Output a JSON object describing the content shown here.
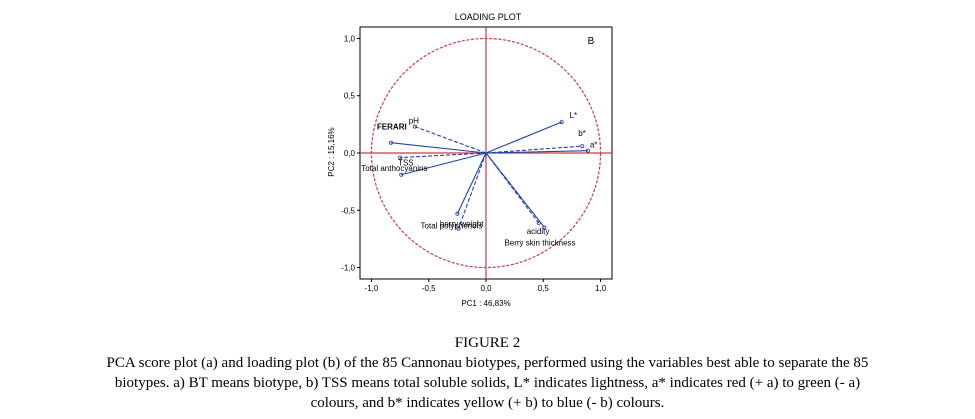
{
  "chart_data": {
    "type": "scatter",
    "title": "LOADING PLOT",
    "panel_label": "B",
    "xlabel": "PC1 : 46,83%",
    "ylabel": "PC2 : 15,16%",
    "xlim": [
      -1.1,
      1.1
    ],
    "ylim": [
      -1.1,
      1.1
    ],
    "xticks": [
      {
        "value": -1.0,
        "label": "-1,0"
      },
      {
        "value": -0.5,
        "label": "-0,5"
      },
      {
        "value": 0.0,
        "label": "0,0"
      },
      {
        "value": 0.5,
        "label": "0,5"
      },
      {
        "value": 1.0,
        "label": "1,0"
      }
    ],
    "yticks": [
      {
        "value": 1.0,
        "label": "1,0"
      },
      {
        "value": 0.5,
        "label": "0,5"
      },
      {
        "value": 0.0,
        "label": "0,0"
      },
      {
        "value": -0.5,
        "label": "-0,5"
      },
      {
        "value": -1.0,
        "label": "-1,0"
      }
    ],
    "unit_circle": true,
    "variables": [
      {
        "label": "pH",
        "x": -0.62,
        "y": 0.23,
        "bold": false,
        "anchor": "end",
        "dx": 4,
        "dy": -3,
        "line": "dashed"
      },
      {
        "label": "FERARI",
        "x": -0.83,
        "y": 0.09,
        "bold": true,
        "anchor": "start",
        "dx": -14,
        "dy": -13,
        "line": "solid"
      },
      {
        "label": "TSS",
        "x": -0.75,
        "y": -0.04,
        "bold": false,
        "anchor": "start",
        "dx": -2,
        "dy": 8,
        "line": "dashed"
      },
      {
        "label": "Total anthocyanins",
        "x": -0.74,
        "y": -0.19,
        "bold": false,
        "anchor": "start",
        "dx": -40,
        "dy": -4,
        "line": "solid"
      },
      {
        "label": "L*",
        "x": 0.66,
        "y": 0.27,
        "bold": false,
        "anchor": "start",
        "dx": 8,
        "dy": -4,
        "line": "solid"
      },
      {
        "label": "b*",
        "x": 0.84,
        "y": 0.06,
        "bold": false,
        "anchor": "start",
        "dx": -4,
        "dy": -10,
        "line": "dashed"
      },
      {
        "label": "a*",
        "x": 0.89,
        "y": 0.02,
        "bold": false,
        "anchor": "start",
        "dx": 2,
        "dy": -3,
        "line": "solid"
      },
      {
        "label": "acidity",
        "x": 0.46,
        "y": -0.61,
        "bold": false,
        "anchor": "start",
        "dx": -12,
        "dy": 11,
        "line": "dashed"
      },
      {
        "label": "Berry skin thickness",
        "x": 0.51,
        "y": -0.65,
        "bold": false,
        "anchor": "start",
        "dx": -40,
        "dy": 18,
        "line": "solid"
      },
      {
        "label": "Total polyphenols",
        "x": -0.25,
        "y": -0.53,
        "bold": false,
        "anchor": "end",
        "dx": 25,
        "dy": 15,
        "line": "solid"
      },
      {
        "label": "berry weight",
        "x": -0.24,
        "y": -0.66,
        "bold": false,
        "anchor": "end",
        "dx": 25,
        "dy": -2,
        "line": "dashed"
      }
    ]
  },
  "caption": {
    "figure_label": "FIGURE 2",
    "lines": [
      "PCA score plot (a) and loading plot (b) of the 85 Cannonau biotypes, performed using the variables best able to separate the 85",
      "biotypes. a) BT means biotype, b) TSS means total soluble solids, L* indicates lightness, a* indicates red (+ a) to green (- a)",
      "colours, and b* indicates yellow (+ b) to blue (- b) colours."
    ]
  }
}
